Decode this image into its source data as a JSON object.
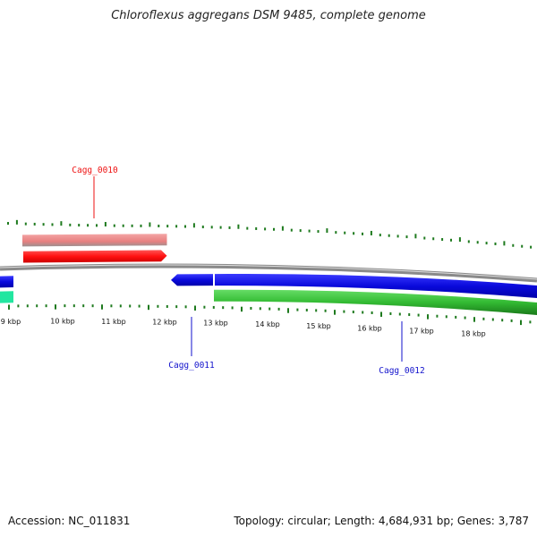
{
  "title": "Chloroflexus aggregans DSM 9485, complete genome",
  "accession": "Accession: NC_011831",
  "summary": "Topology: circular; Length: 4,684,931 bp; Genes: 3,787",
  "ruler_labels": [
    "9 kbp",
    "10 kbp",
    "11 kbp",
    "12 kbp",
    "13 kbp",
    "14 kbp",
    "15 kbp",
    "16 kbp",
    "17 kbp",
    "18 kbp"
  ],
  "genes": [
    {
      "name": "Cagg_0010",
      "strand": "+",
      "color": "#ee1111"
    },
    {
      "name": "Cagg_0011",
      "strand": "-",
      "color": "#1111cc"
    },
    {
      "name": "Cagg_0012",
      "strand": "-",
      "color": "#1111cc"
    }
  ],
  "colors": {
    "forward_cds": "#ff1111",
    "forward_feature": "#e88080",
    "reverse_cds": "#0a0adc",
    "reverse_feature": "#33bb33",
    "backbone": "#8a8a8a",
    "tick": "#1e7a1e",
    "teal_feature": "#22e6a0"
  }
}
